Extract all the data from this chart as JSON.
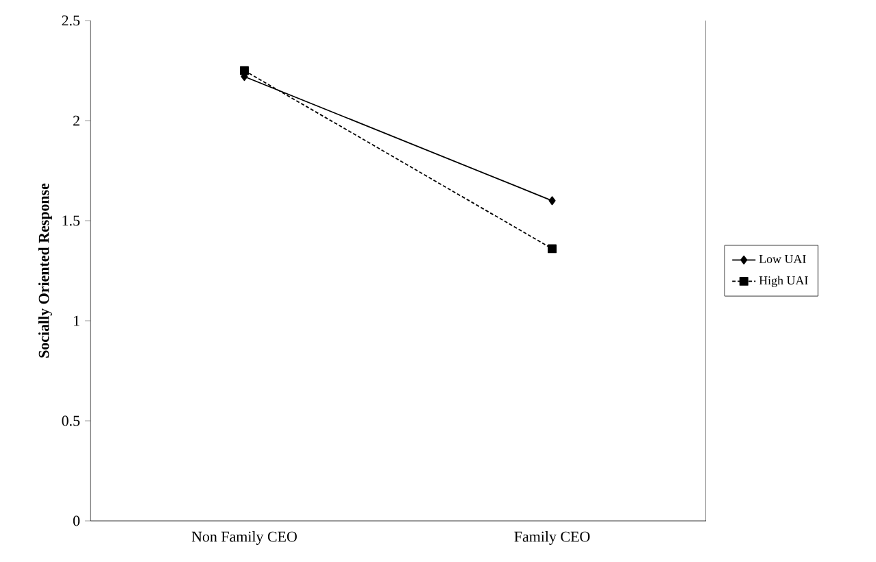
{
  "chart_data": {
    "type": "line",
    "ylabel": "**Socially Oriented Response**",
    "categories": [
      "Non Family CEO",
      "Family CEO"
    ],
    "series": [
      {
        "name": "Low UAI",
        "color": "#000000",
        "values": [
          2.22,
          1.6
        ],
        "marker": "diamond",
        "line_style": "solid"
      },
      {
        "name": "High UAI",
        "color": "#000000",
        "values": [
          2.25,
          1.36
        ],
        "marker": "square",
        "line_style": "dashed"
      }
    ],
    "ylim": [
      0,
      2.5
    ],
    "yticks": [
      0,
      0.5,
      1,
      1.5,
      2,
      2.5
    ],
    "grid": false,
    "legend": "right"
  }
}
